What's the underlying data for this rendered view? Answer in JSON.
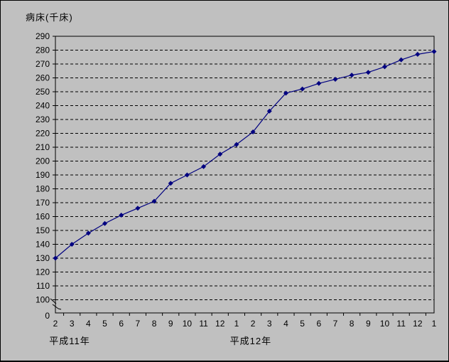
{
  "colors": {
    "background": "#c0c0c0",
    "grid": "#000000",
    "series": "#000080",
    "text": "#000000"
  },
  "chart_data": {
    "type": "line",
    "title": "病床(千床)",
    "grid": "horizontal-dashed",
    "legend": "none",
    "y_axis": {
      "min": 100,
      "max": 290,
      "step": 10,
      "break_symbol": true,
      "baseline_label": "0",
      "tick_labels": [
        "290",
        "280",
        "270",
        "260",
        "250",
        "240",
        "230",
        "220",
        "210",
        "200",
        "190",
        "180",
        "170",
        "160",
        "150",
        "140",
        "130",
        "120",
        "110",
        "100"
      ]
    },
    "x_axis": {
      "tick_labels": [
        "2",
        "3",
        "4",
        "5",
        "6",
        "7",
        "8",
        "9",
        "10",
        "11",
        "12",
        "1",
        "2",
        "3",
        "4",
        "5",
        "6",
        "7",
        "8",
        "9",
        "10",
        "11",
        "12",
        "1"
      ],
      "year_labels": [
        {
          "label": "平成11年",
          "under_month_index": 0
        },
        {
          "label": "平成12年",
          "under_month_index": 11
        }
      ]
    },
    "series": [
      {
        "name": "病床(千床)",
        "marker": "diamond",
        "color": "#000080",
        "values": [
          130,
          140,
          148,
          155,
          161,
          166,
          171,
          184,
          190,
          196,
          205,
          212,
          221,
          236,
          249,
          252,
          256,
          259,
          262,
          264,
          268,
          273,
          277,
          279
        ]
      }
    ]
  }
}
